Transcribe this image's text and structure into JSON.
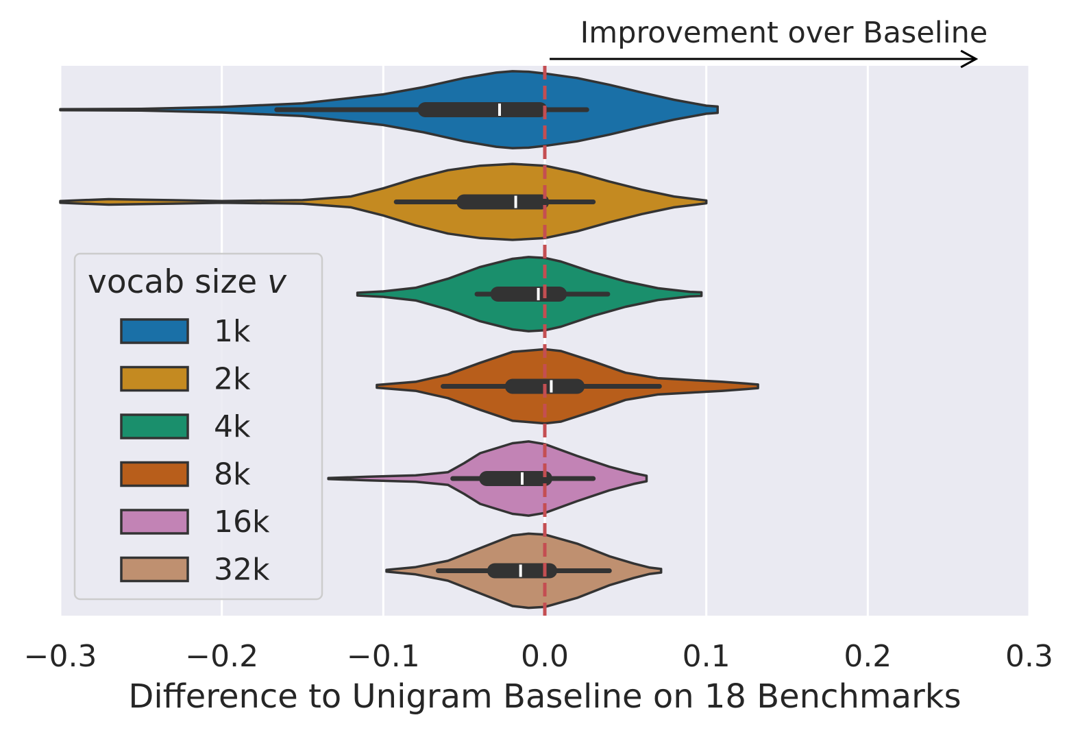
{
  "chart_data": {
    "type": "violin",
    "orientation": "horizontal",
    "title": "",
    "xlabel": "Difference to Unigram Baseline on 18 Benchmarks",
    "ylabel": "",
    "xlim": [
      -0.3,
      0.3
    ],
    "xticks": [
      -0.3,
      -0.2,
      -0.1,
      0.0,
      0.1,
      0.2,
      0.3
    ],
    "xtick_labels": [
      "−0.3",
      "−0.2",
      "−0.1",
      "0.0",
      "0.1",
      "0.2",
      "0.3"
    ],
    "grid": "vertical",
    "background": "#eaeaf2",
    "reference_line": {
      "x": 0.0,
      "style": "dashed",
      "color": "#c44e52"
    },
    "annotation": {
      "text": "Improvement over Baseline",
      "arrow_from": 0.003,
      "arrow_to": 0.267
    },
    "legend": {
      "title": "vocab size ",
      "title_var": "v",
      "placement": "center-left"
    },
    "series": [
      {
        "name": "1k",
        "color": "#1a70a7",
        "min": -0.3,
        "max": 0.107,
        "q1": -0.074,
        "median": -0.028,
        "q3": -0.003,
        "whisker_low": -0.166,
        "whisker_high": 0.026,
        "density": [
          [
            -0.3,
            0.01
          ],
          [
            -0.25,
            0.02
          ],
          [
            -0.2,
            0.06
          ],
          [
            -0.15,
            0.14
          ],
          [
            -0.1,
            0.34
          ],
          [
            -0.075,
            0.5
          ],
          [
            -0.05,
            0.7
          ],
          [
            -0.03,
            0.82
          ],
          [
            -0.02,
            0.85
          ],
          [
            -0.01,
            0.84
          ],
          [
            0.0,
            0.8
          ],
          [
            0.02,
            0.7
          ],
          [
            0.04,
            0.55
          ],
          [
            0.06,
            0.38
          ],
          [
            0.08,
            0.22
          ],
          [
            0.1,
            0.09
          ],
          [
            0.107,
            0.07
          ]
        ]
      },
      {
        "name": "2k",
        "color": "#c48a21",
        "min": -0.3,
        "max": 0.101,
        "q1": -0.05,
        "median": -0.018,
        "q3": -0.002,
        "whisker_low": -0.092,
        "whisker_high": 0.03,
        "density": [
          [
            -0.3,
            0.02
          ],
          [
            -0.27,
            0.06
          ],
          [
            -0.25,
            0.05
          ],
          [
            -0.2,
            0.02
          ],
          [
            -0.15,
            0.04
          ],
          [
            -0.12,
            0.12
          ],
          [
            -0.1,
            0.3
          ],
          [
            -0.08,
            0.52
          ],
          [
            -0.06,
            0.7
          ],
          [
            -0.04,
            0.8
          ],
          [
            -0.02,
            0.84
          ],
          [
            0.0,
            0.8
          ],
          [
            0.02,
            0.65
          ],
          [
            0.04,
            0.45
          ],
          [
            0.06,
            0.27
          ],
          [
            0.08,
            0.12
          ],
          [
            0.1,
            0.03
          ]
        ]
      },
      {
        "name": "4k",
        "color": "#1a8f6c",
        "min": -0.116,
        "max": 0.097,
        "q1": -0.029,
        "median": -0.004,
        "q3": 0.009,
        "whisker_low": -0.042,
        "whisker_high": 0.039,
        "density": [
          [
            -0.116,
            0.03
          ],
          [
            -0.1,
            0.06
          ],
          [
            -0.08,
            0.14
          ],
          [
            -0.06,
            0.34
          ],
          [
            -0.04,
            0.6
          ],
          [
            -0.02,
            0.78
          ],
          [
            -0.01,
            0.82
          ],
          [
            0.0,
            0.8
          ],
          [
            0.01,
            0.72
          ],
          [
            0.03,
            0.48
          ],
          [
            0.05,
            0.28
          ],
          [
            0.07,
            0.13
          ],
          [
            0.09,
            0.05
          ],
          [
            0.097,
            0.04
          ]
        ]
      },
      {
        "name": "8k",
        "color": "#b85e1b",
        "min": -0.104,
        "max": 0.132,
        "q1": -0.02,
        "median": 0.004,
        "q3": 0.02,
        "whisker_low": -0.063,
        "whisker_high": 0.071,
        "density": [
          [
            -0.104,
            0.03
          ],
          [
            -0.08,
            0.1
          ],
          [
            -0.06,
            0.26
          ],
          [
            -0.04,
            0.52
          ],
          [
            -0.02,
            0.76
          ],
          [
            0.0,
            0.82
          ],
          [
            0.01,
            0.78
          ],
          [
            0.03,
            0.55
          ],
          [
            0.05,
            0.3
          ],
          [
            0.07,
            0.18
          ],
          [
            0.09,
            0.14
          ],
          [
            0.11,
            0.1
          ],
          [
            0.125,
            0.06
          ],
          [
            0.132,
            0.04
          ]
        ]
      },
      {
        "name": "16k",
        "color": "#c283b5",
        "min": -0.134,
        "max": 0.063,
        "q1": -0.036,
        "median": -0.014,
        "q3": 0.0,
        "whisker_low": -0.057,
        "whisker_high": 0.03,
        "density": [
          [
            -0.134,
            0.01
          ],
          [
            -0.11,
            0.04
          ],
          [
            -0.09,
            0.06
          ],
          [
            -0.08,
            0.07
          ],
          [
            -0.06,
            0.14
          ],
          [
            -0.05,
            0.34
          ],
          [
            -0.04,
            0.56
          ],
          [
            -0.02,
            0.78
          ],
          [
            -0.01,
            0.82
          ],
          [
            0.0,
            0.76
          ],
          [
            0.02,
            0.5
          ],
          [
            0.04,
            0.26
          ],
          [
            0.055,
            0.12
          ],
          [
            0.063,
            0.06
          ]
        ]
      },
      {
        "name": "32k",
        "color": "#bf9070",
        "min": -0.098,
        "max": 0.072,
        "q1": -0.031,
        "median": -0.015,
        "q3": 0.003,
        "whisker_low": -0.066,
        "whisker_high": 0.04,
        "density": [
          [
            -0.098,
            0.02
          ],
          [
            -0.08,
            0.08
          ],
          [
            -0.06,
            0.22
          ],
          [
            -0.04,
            0.5
          ],
          [
            -0.02,
            0.78
          ],
          [
            -0.01,
            0.82
          ],
          [
            0.0,
            0.8
          ],
          [
            0.02,
            0.6
          ],
          [
            0.04,
            0.32
          ],
          [
            0.055,
            0.16
          ],
          [
            0.065,
            0.07
          ],
          [
            0.072,
            0.04
          ]
        ]
      }
    ]
  }
}
